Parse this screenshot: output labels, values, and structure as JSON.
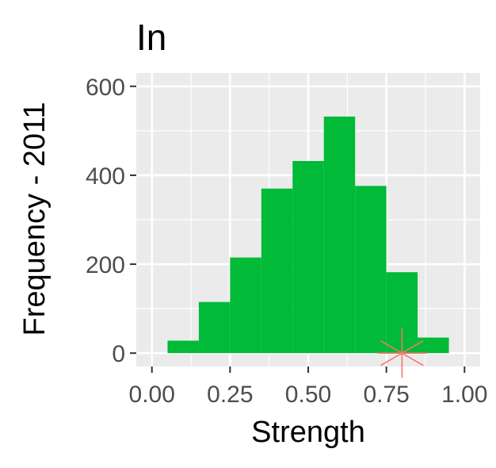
{
  "chart_data": {
    "type": "bar",
    "title": "In",
    "xlabel": "Strength",
    "ylabel": "Frequency - 2011",
    "xlim": [
      -0.05,
      1.05
    ],
    "ylim": [
      -30,
      630
    ],
    "x_ticks": [
      0.0,
      0.25,
      0.5,
      0.75,
      1.0
    ],
    "x_tick_labels": [
      "0.00",
      "0.25",
      "0.50",
      "0.75",
      "1.00"
    ],
    "y_ticks": [
      0,
      200,
      400,
      600
    ],
    "y_tick_labels": [
      "0",
      "200",
      "400",
      "600"
    ],
    "bin_width": 0.1,
    "bins": [
      {
        "x_start": 0.05,
        "x_end": 0.15,
        "count": 28
      },
      {
        "x_start": 0.15,
        "x_end": 0.25,
        "count": 115
      },
      {
        "x_start": 0.25,
        "x_end": 0.35,
        "count": 215
      },
      {
        "x_start": 0.35,
        "x_end": 0.45,
        "count": 370
      },
      {
        "x_start": 0.45,
        "x_end": 0.55,
        "count": 432
      },
      {
        "x_start": 0.55,
        "x_end": 0.65,
        "count": 532
      },
      {
        "x_start": 0.65,
        "x_end": 0.75,
        "count": 376
      },
      {
        "x_start": 0.75,
        "x_end": 0.85,
        "count": 182
      },
      {
        "x_start": 0.85,
        "x_end": 0.95,
        "count": 35
      }
    ],
    "marker": {
      "x": 0.8,
      "y": 0,
      "shape": "asterisk",
      "color": "#F8766D"
    },
    "grid": true,
    "colors": {
      "bar": "#00BA38",
      "panel": "#EBEBEB",
      "grid": "#FFFFFF",
      "text": "#4D4D4D"
    }
  }
}
